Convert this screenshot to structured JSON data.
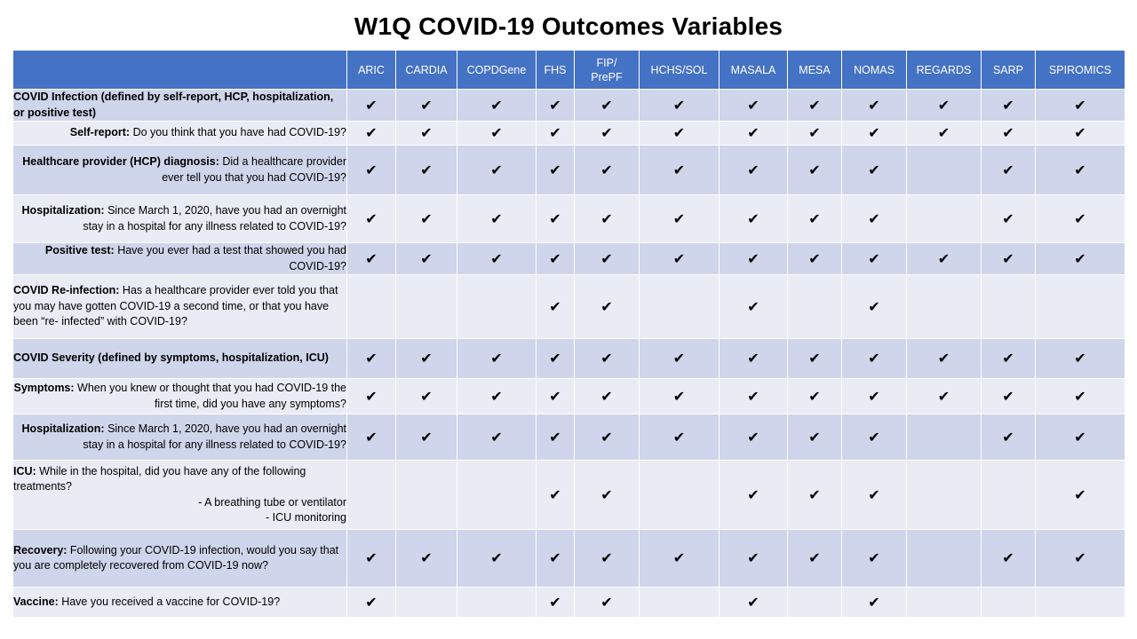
{
  "title": "W1Q COVID-19 Outcomes Variables",
  "check_glyph": "✔",
  "columns": [
    "ARIC",
    "CARDIA",
    "COPDGene",
    "FHS",
    "FIP/\nPrePF",
    "HCHS/SOL",
    "MASALA",
    "MESA",
    "NOMAS",
    "REGARDS",
    "SARP",
    "SPIROMICS"
  ],
  "rows": [
    {
      "label": "COVID Infection (defined by self-report, HCP, hospitalization, or positive test)",
      "text": "",
      "checks": [
        1,
        1,
        1,
        1,
        1,
        1,
        1,
        1,
        1,
        1,
        1,
        1
      ]
    },
    {
      "label": "Self-report:",
      "text": " Do you think that you have had COVID-19?",
      "checks": [
        1,
        1,
        1,
        1,
        1,
        1,
        1,
        1,
        1,
        1,
        1,
        1
      ]
    },
    {
      "label": "Healthcare provider (HCP) diagnosis:",
      "text": " Did a healthcare provider ever tell you that you had COVID-19?",
      "checks": [
        1,
        1,
        1,
        1,
        1,
        1,
        1,
        1,
        1,
        0,
        1,
        1
      ]
    },
    {
      "label": "Hospitalization:",
      "text": " Since March 1, 2020,  have you had an overnight stay in a hospital for any illness related to COVID-19?",
      "checks": [
        1,
        1,
        1,
        1,
        1,
        1,
        1,
        1,
        1,
        0,
        1,
        1
      ]
    },
    {
      "label": "Positive test:",
      "text": " Have you ever had a test that showed you had COVID-19?",
      "checks": [
        1,
        1,
        1,
        1,
        1,
        1,
        1,
        1,
        1,
        1,
        1,
        1
      ]
    },
    {
      "label": "COVID Re-infection:",
      "text": " Has a healthcare provider ever told you that you may have gotten COVID-19 a second time, or that you have been “re- infected” with COVID-19?",
      "checks": [
        0,
        0,
        0,
        1,
        1,
        0,
        1,
        0,
        1,
        0,
        0,
        0
      ]
    },
    {
      "label": "COVID Severity (defined by symptoms, hospitalization, ICU)",
      "text": "",
      "checks": [
        1,
        1,
        1,
        1,
        1,
        1,
        1,
        1,
        1,
        1,
        1,
        1
      ]
    },
    {
      "label": "Symptoms:",
      "text": " When you knew or thought that you had COVID-19 the first time, did you have any symptoms?",
      "checks": [
        1,
        1,
        1,
        1,
        1,
        1,
        1,
        1,
        1,
        1,
        1,
        1
      ]
    },
    {
      "label": "Hospitalization:",
      "text": " Since March 1, 2020,  have you had an overnight stay in a hospital for any illness related to COVID-19?",
      "checks": [
        1,
        1,
        1,
        1,
        1,
        1,
        1,
        1,
        1,
        0,
        1,
        1
      ]
    },
    {
      "label": "ICU:",
      "text": " While in the hospital, did you have any of the following treatments?",
      "bullets": [
        "-    A breathing tube or ventilator",
        "-    ICU monitoring"
      ],
      "checks": [
        0,
        0,
        0,
        1,
        1,
        0,
        1,
        1,
        1,
        0,
        0,
        1
      ]
    },
    {
      "label": "Recovery:",
      "text": " Following your COVID-19 infection, would you say that you are completely recovered from COVID-19 now?",
      "checks": [
        1,
        1,
        1,
        1,
        1,
        1,
        1,
        1,
        1,
        0,
        1,
        1
      ]
    },
    {
      "label": "Vaccine:",
      "text": " Have you received a vaccine for COVID-19?",
      "checks": [
        1,
        0,
        0,
        1,
        1,
        0,
        1,
        0,
        1,
        0,
        0,
        0
      ]
    }
  ]
}
